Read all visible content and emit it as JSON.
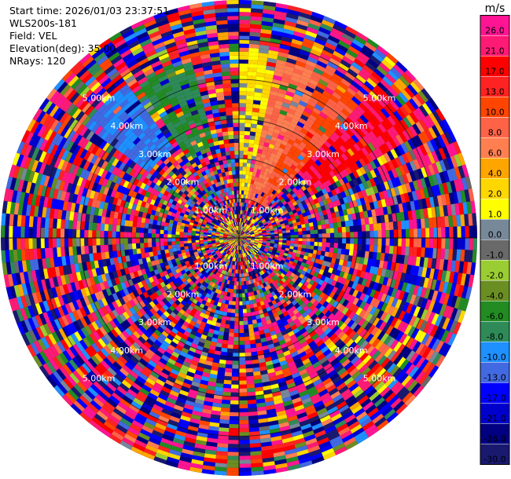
{
  "info": {
    "start_time": "Start time: 2026/01/03 23:37:51",
    "instrument": "WLS200s-181",
    "field": "Field: VEL",
    "elevation": "Elevation(deg): 35.00",
    "nrays": "NRays: 120"
  },
  "colorbar": {
    "unit": "m/s",
    "bins": [
      {
        "label": "26.0",
        "color": "#ff1493"
      },
      {
        "label": "21.0",
        "color": "#ff1a75"
      },
      {
        "label": "17.0",
        "color": "#ff0000"
      },
      {
        "label": "13.0",
        "color": "#ff2222"
      },
      {
        "label": "10.0",
        "color": "#ff4500"
      },
      {
        "label": "8.0",
        "color": "#ff6347"
      },
      {
        "label": "6.0",
        "color": "#ff7f50"
      },
      {
        "label": "4.0",
        "color": "#ffa500"
      },
      {
        "label": "2.0",
        "color": "#ffd700"
      },
      {
        "label": "1.0",
        "color": "#ffff00"
      },
      {
        "label": "0.0",
        "color": "#778899"
      },
      {
        "label": "-1.0",
        "color": "#696969"
      },
      {
        "label": "-2.0",
        "color": "#9acd32"
      },
      {
        "label": "-4.0",
        "color": "#6b8e23"
      },
      {
        "label": "-6.0",
        "color": "#228b22"
      },
      {
        "label": "-8.0",
        "color": "#2e8b57"
      },
      {
        "label": "-10.0",
        "color": "#1e90ff"
      },
      {
        "label": "-13.0",
        "color": "#4169e1"
      },
      {
        "label": "-17.0",
        "color": "#0000ff"
      },
      {
        "label": "-21.0",
        "color": "#0000cd"
      },
      {
        "label": "-26.0",
        "color": "#000080"
      },
      {
        "label": "-30.0",
        "color": "#191970"
      }
    ]
  },
  "chart_data": {
    "type": "heatmap",
    "projection": "polar-ppi",
    "field": "VEL",
    "units": "m/s",
    "nrays": 120,
    "range_rings_km": [
      1,
      2,
      3,
      4,
      5
    ],
    "range_ring_labels": [
      "1.00km",
      "2.00km",
      "3.00km",
      "4.00km",
      "5.00km"
    ],
    "max_range_km": 6,
    "gate_km": 0.1,
    "color_levels": [
      -30,
      -26,
      -21,
      -17,
      -13,
      -10,
      -8,
      -6,
      -4,
      -2,
      -1,
      0,
      1,
      2,
      4,
      6,
      8,
      10,
      13,
      17,
      21,
      26
    ],
    "coherent_sectors": [
      {
        "az_from_deg": 0,
        "az_to_deg": 12,
        "range_km": [
          1.0,
          4.8
        ],
        "velocity_ms": 2
      },
      {
        "az_from_deg": 12,
        "az_to_deg": 27,
        "range_km": [
          1.0,
          4.8
        ],
        "velocity_ms": 8
      },
      {
        "az_from_deg": 27,
        "az_to_deg": 42,
        "range_km": [
          1.0,
          4.8
        ],
        "velocity_ms": 10
      },
      {
        "az_from_deg": 42,
        "az_to_deg": 60,
        "range_km": [
          2.2,
          5.2
        ],
        "velocity_ms": 21
      },
      {
        "az_from_deg": 328,
        "az_to_deg": 345,
        "range_km": [
          2.4,
          4.6
        ],
        "velocity_ms": -6
      },
      {
        "az_from_deg": 305,
        "az_to_deg": 325,
        "range_km": [
          2.8,
          4.8
        ],
        "velocity_ms": -10
      }
    ]
  }
}
